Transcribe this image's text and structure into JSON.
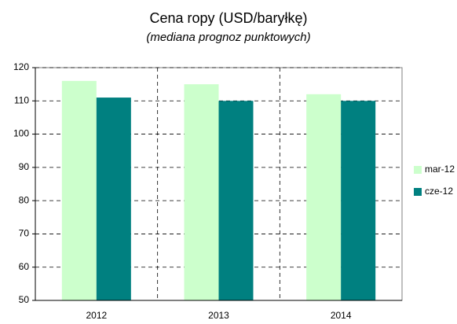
{
  "chart_data": {
    "type": "bar",
    "title": "Cena ropy (USD/baryłkę)",
    "subtitle": "(mediana prognoz punktowych)",
    "categories": [
      "2012",
      "2013",
      "2014"
    ],
    "series": [
      {
        "name": "mar-12",
        "color": "#ccffcc",
        "values": [
          116,
          115,
          112
        ]
      },
      {
        "name": "cze-12",
        "color": "#008080",
        "values": [
          111,
          110,
          110
        ]
      }
    ],
    "ylim": [
      50,
      120
    ],
    "yticks": [
      50,
      60,
      70,
      80,
      90,
      100,
      110,
      120
    ],
    "grid": true,
    "legend": "right"
  }
}
